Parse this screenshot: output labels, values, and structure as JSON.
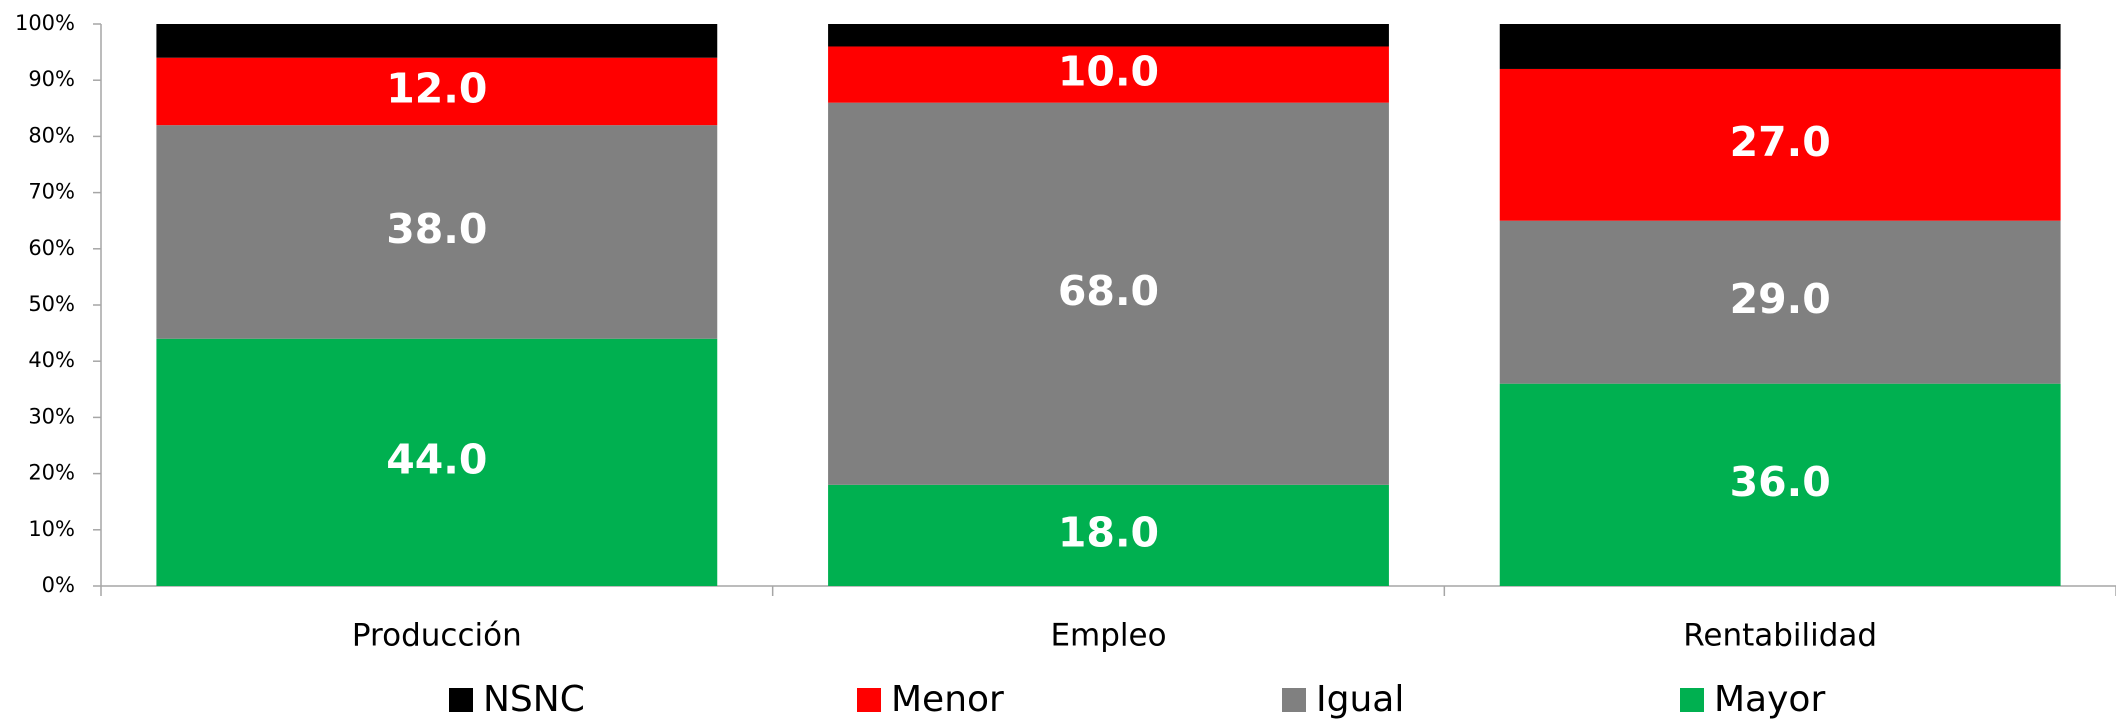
{
  "chart_data": {
    "type": "stacked_bar",
    "categories": [
      "Producción",
      "Empleo",
      "Rentabilidad"
    ],
    "series": [
      {
        "name": "Mayor",
        "color": "#00b050",
        "values": [
          44,
          18,
          36
        ],
        "value_labels": [
          "44.0",
          "18.0",
          "36.0"
        ]
      },
      {
        "name": "Igual",
        "color": "#808080",
        "values": [
          38,
          68,
          29
        ],
        "value_labels": [
          "38.0",
          "68.0",
          "29.0"
        ]
      },
      {
        "name": "Menor",
        "color": "#ff0000",
        "values": [
          12,
          10,
          27
        ],
        "value_labels": [
          "12.0",
          "10.0",
          "27.0"
        ]
      },
      {
        "name": "NSNC",
        "color": "#000000",
        "values": [
          6,
          4,
          8
        ]
      }
    ],
    "ylim": [
      0,
      100
    ],
    "yticks": [
      {
        "value": 0,
        "label": "0%"
      },
      {
        "value": 10,
        "label": "10%"
      },
      {
        "value": 20,
        "label": "20%"
      },
      {
        "value": 30,
        "label": "30%"
      },
      {
        "value": 40,
        "label": "40%"
      },
      {
        "value": 50,
        "label": "50%"
      },
      {
        "value": 60,
        "label": "60%"
      },
      {
        "value": 70,
        "label": "70%"
      },
      {
        "value": 80,
        "label": "80%"
      },
      {
        "value": 90,
        "label": "90%"
      },
      {
        "value": 100,
        "label": "100%"
      }
    ],
    "grid": false,
    "legend": "bottom"
  }
}
